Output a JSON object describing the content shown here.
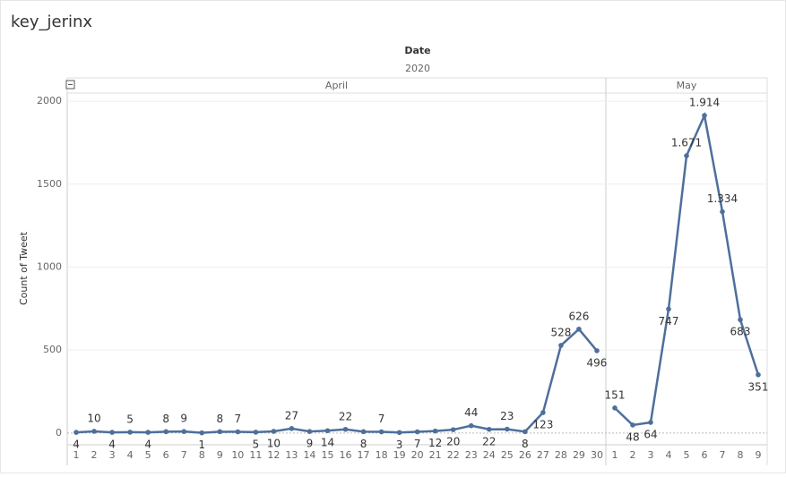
{
  "chart_data": {
    "type": "line",
    "title": "key_jerinx",
    "header": "Date",
    "subheader": "2020",
    "y_label": "Count of Tweet",
    "ylim": [
      -71,
      2049
    ],
    "yticks": [
      0,
      500,
      1000,
      1500,
      2000
    ],
    "grid": true,
    "color": "#4e6f9b",
    "series": [
      {
        "name": "April",
        "color": "#4e6f9b",
        "categories": [
          "1",
          "2",
          "3",
          "4",
          "5",
          "6",
          "7",
          "8",
          "9",
          "10",
          "11",
          "12",
          "13",
          "14",
          "15",
          "16",
          "17",
          "18",
          "19",
          "20",
          "21",
          "22",
          "23",
          "24",
          "25",
          "26",
          "27",
          "28",
          "29",
          "30"
        ],
        "values": [
          4,
          10,
          4,
          5,
          4,
          8,
          9,
          1,
          8,
          7,
          5,
          10,
          27,
          9,
          14,
          22,
          8,
          7,
          3,
          7,
          12,
          20,
          44,
          22,
          23,
          8,
          123,
          528,
          626,
          496
        ]
      },
      {
        "name": "May",
        "color": "#4e6f9b",
        "categories": [
          "1",
          "2",
          "3",
          "4",
          "5",
          "6",
          "7",
          "8",
          "9"
        ],
        "values": [
          151,
          48,
          64,
          747,
          1671,
          1914,
          1334,
          683,
          351
        ],
        "value_labels": [
          "151",
          "48",
          "64",
          "747",
          "1.671",
          "1.914",
          "1.334",
          "683",
          "351"
        ]
      }
    ]
  }
}
